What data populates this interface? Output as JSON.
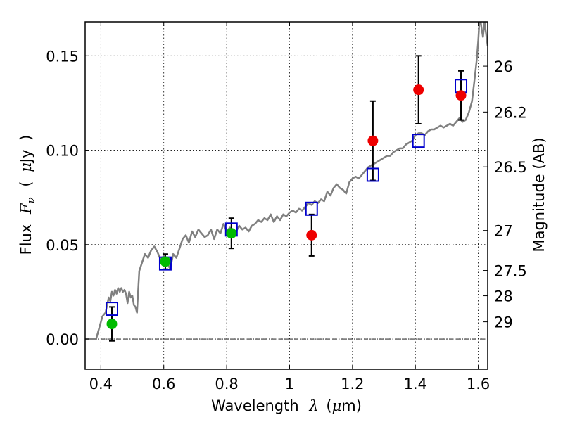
{
  "chart_data": {
    "type": "scatter",
    "title": "",
    "xlabel": {
      "prefix": "Wavelength",
      "symbol": "λ",
      "unit_open": "(",
      "unit_symbol": "μ",
      "unit_rest": "m)"
    },
    "ylabel": {
      "prefix": "Flux",
      "symbol": "F",
      "subscript": "ν",
      "paren_open": "(",
      "unit_symbol": "μ",
      "unit_rest": "Jy",
      "paren_close": ")"
    },
    "y2label": "Magnitude (AB)",
    "xlim": [
      0.35,
      1.63
    ],
    "ylim": [
      -0.016,
      0.168
    ],
    "xticks": [
      0.4,
      0.6,
      0.8,
      1.0,
      1.2,
      1.4,
      1.6
    ],
    "xtick_labels": [
      "0.4",
      "0.6",
      "0.8",
      "1",
      "1.2",
      "1.4",
      "1.6"
    ],
    "yticks": [
      0.0,
      0.05,
      0.1,
      0.15
    ],
    "ytick_labels": [
      "0.00",
      "0.05",
      "0.10",
      "0.15"
    ],
    "y2ticks": [
      {
        "label": "26",
        "flux": 0.1445
      },
      {
        "label": "26.2",
        "flux": 0.1202
      },
      {
        "label": "26.5",
        "flux": 0.0912
      },
      {
        "label": "27",
        "flux": 0.0575
      },
      {
        "label": "27.5",
        "flux": 0.0363
      },
      {
        "label": "28",
        "flux": 0.0229
      },
      {
        "label": "29",
        "flux": 0.0091
      }
    ],
    "grid": true,
    "zero_line": true,
    "colors": {
      "model_line": "#808080",
      "model_photometry": "#0000cc",
      "detections_green": "#00bb00",
      "detections_red": "#ee0000",
      "errorbar": "#000000"
    },
    "series": [
      {
        "kind": "line",
        "x": [
          0.35,
          0.385,
          0.395,
          0.405,
          0.415,
          0.42,
          0.425,
          0.43,
          0.435,
          0.44,
          0.445,
          0.45,
          0.455,
          0.46,
          0.465,
          0.47,
          0.475,
          0.48,
          0.485,
          0.49,
          0.495,
          0.5,
          0.505,
          0.51,
          0.515,
          0.518,
          0.522,
          0.53,
          0.54,
          0.55,
          0.56,
          0.57,
          0.58,
          0.59,
          0.6,
          0.61,
          0.62,
          0.63,
          0.64,
          0.65,
          0.66,
          0.67,
          0.68,
          0.69,
          0.7,
          0.71,
          0.72,
          0.73,
          0.74,
          0.75,
          0.76,
          0.77,
          0.78,
          0.79,
          0.8,
          0.81,
          0.82,
          0.83,
          0.84,
          0.85,
          0.86,
          0.87,
          0.88,
          0.89,
          0.9,
          0.91,
          0.92,
          0.93,
          0.94,
          0.95,
          0.96,
          0.97,
          0.98,
          0.99,
          1.0,
          1.01,
          1.02,
          1.03,
          1.04,
          1.05,
          1.06,
          1.07,
          1.08,
          1.09,
          1.1,
          1.11,
          1.12,
          1.13,
          1.14,
          1.15,
          1.16,
          1.17,
          1.18,
          1.19,
          1.2,
          1.21,
          1.22,
          1.23,
          1.24,
          1.25,
          1.26,
          1.27,
          1.28,
          1.29,
          1.3,
          1.31,
          1.32,
          1.33,
          1.34,
          1.35,
          1.36,
          1.37,
          1.38,
          1.39,
          1.4,
          1.41,
          1.42,
          1.43,
          1.44,
          1.45,
          1.46,
          1.47,
          1.48,
          1.49,
          1.5,
          1.51,
          1.52,
          1.53,
          1.54,
          1.55,
          1.56,
          1.57,
          1.58,
          1.59,
          1.595,
          1.6,
          1.605,
          1.61,
          1.615,
          1.62,
          1.63
        ],
        "y": [
          0.0,
          0.0,
          0.006,
          0.012,
          0.014,
          0.018,
          0.022,
          0.02,
          0.025,
          0.023,
          0.026,
          0.024,
          0.027,
          0.025,
          0.027,
          0.025,
          0.026,
          0.024,
          0.019,
          0.025,
          0.022,
          0.023,
          0.018,
          0.017,
          0.014,
          0.024,
          0.036,
          0.04,
          0.045,
          0.043,
          0.047,
          0.049,
          0.046,
          0.042,
          0.044,
          0.041,
          0.037,
          0.045,
          0.043,
          0.048,
          0.053,
          0.055,
          0.051,
          0.057,
          0.054,
          0.058,
          0.056,
          0.054,
          0.055,
          0.058,
          0.053,
          0.058,
          0.056,
          0.061,
          0.057,
          0.059,
          0.058,
          0.057,
          0.06,
          0.058,
          0.059,
          0.057,
          0.06,
          0.061,
          0.063,
          0.062,
          0.064,
          0.063,
          0.066,
          0.062,
          0.065,
          0.063,
          0.066,
          0.065,
          0.067,
          0.068,
          0.067,
          0.069,
          0.068,
          0.07,
          0.072,
          0.071,
          0.073,
          0.072,
          0.074,
          0.073,
          0.078,
          0.076,
          0.08,
          0.082,
          0.08,
          0.079,
          0.077,
          0.083,
          0.085,
          0.086,
          0.085,
          0.087,
          0.089,
          0.091,
          0.092,
          0.093,
          0.094,
          0.095,
          0.096,
          0.097,
          0.097,
          0.099,
          0.1,
          0.101,
          0.101,
          0.103,
          0.104,
          0.105,
          0.108,
          0.109,
          0.109,
          0.108,
          0.11,
          0.111,
          0.111,
          0.112,
          0.113,
          0.112,
          0.113,
          0.114,
          0.113,
          0.115,
          0.117,
          0.115,
          0.116,
          0.12,
          0.126,
          0.14,
          0.148,
          0.158,
          0.172,
          0.165,
          0.16,
          0.168,
          0.155
        ]
      },
      {
        "kind": "squares",
        "name_hidden": "model",
        "x": [
          0.435,
          0.605,
          0.815,
          1.07,
          1.265,
          1.41,
          1.545
        ],
        "y": [
          0.016,
          0.04,
          0.058,
          0.069,
          0.087,
          0.105,
          0.134
        ]
      },
      {
        "kind": "points",
        "color": "green",
        "x": [
          0.435,
          0.605,
          0.815
        ],
        "y": [
          0.008,
          0.041,
          0.056
        ],
        "err": [
          0.009,
          0.004,
          0.008
        ]
      },
      {
        "kind": "points",
        "color": "red",
        "x": [
          1.07,
          1.265,
          1.41,
          1.545
        ],
        "y": [
          0.055,
          0.105,
          0.132,
          0.129
        ],
        "err": [
          0.011,
          0.021,
          0.018,
          0.013
        ]
      }
    ]
  }
}
